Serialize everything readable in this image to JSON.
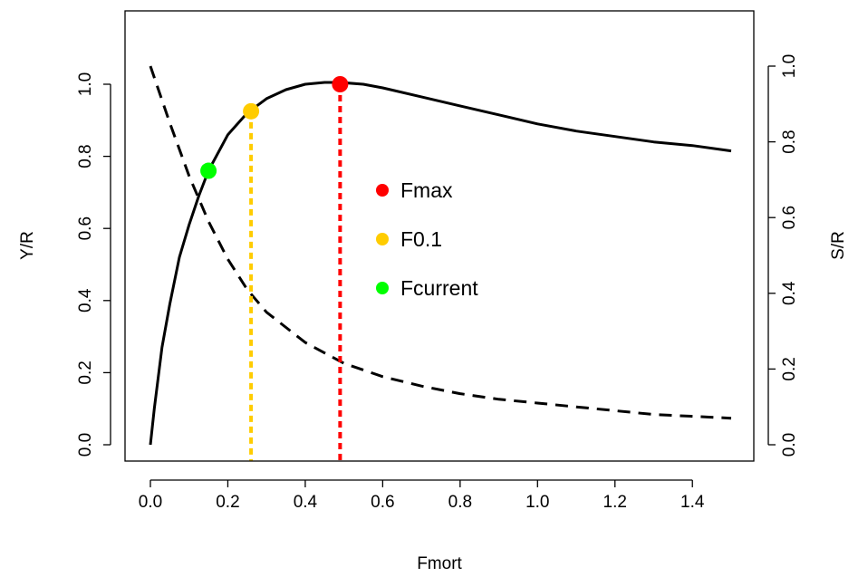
{
  "chart_data": {
    "type": "line",
    "title": "",
    "xlabel": "Fmort",
    "ylabel": "Y/R",
    "y2label": "S/R",
    "xlim": [
      0,
      1.5
    ],
    "ylim": [
      0,
      1.1
    ],
    "y2lim": [
      0,
      1.1
    ],
    "xticks": [
      "0.0",
      "0.2",
      "0.4",
      "0.6",
      "0.8",
      "1.0",
      "1.2",
      "1.4"
    ],
    "yticks": [
      "0.0",
      "0.2",
      "0.4",
      "0.6",
      "0.8",
      "1.0"
    ],
    "y2ticks": [
      "0.0",
      "0.2",
      "0.4",
      "0.6",
      "0.8",
      "1.0"
    ],
    "grid": false,
    "series": [
      {
        "axis": "left",
        "line_style": "solid",
        "color": "#000000",
        "x": [
          0,
          0.01,
          0.03,
          0.05,
          0.075,
          0.1,
          0.125,
          0.15,
          0.2,
          0.25,
          0.3,
          0.35,
          0.4,
          0.45,
          0.49,
          0.55,
          0.6,
          0.7,
          0.8,
          0.9,
          1.0,
          1.1,
          1.2,
          1.3,
          1.4,
          1.5
        ],
        "values": [
          0,
          0.1,
          0.27,
          0.39,
          0.52,
          0.61,
          0.69,
          0.76,
          0.86,
          0.92,
          0.96,
          0.985,
          1.0,
          1.005,
          1.005,
          1.0,
          0.99,
          0.965,
          0.94,
          0.915,
          0.89,
          0.87,
          0.855,
          0.84,
          0.83,
          0.815
        ]
      },
      {
        "axis": "right",
        "line_style": "dashed",
        "color": "#000000",
        "x": [
          0,
          0.05,
          0.1,
          0.15,
          0.2,
          0.25,
          0.3,
          0.4,
          0.5,
          0.6,
          0.7,
          0.8,
          0.9,
          1.0,
          1.1,
          1.2,
          1.3,
          1.4,
          1.5
        ],
        "values": [
          1.0,
          0.85,
          0.71,
          0.59,
          0.49,
          0.41,
          0.35,
          0.27,
          0.215,
          0.18,
          0.155,
          0.135,
          0.12,
          0.11,
          0.1,
          0.09,
          0.08,
          0.075,
          0.07
        ]
      }
    ],
    "reference_points": [
      {
        "name": "Fmax",
        "x": 0.49,
        "y": 1.0,
        "color": "#ff0000",
        "vline": true
      },
      {
        "name": "F0.1",
        "x": 0.26,
        "y": 0.925,
        "color": "#ffcc00",
        "vline": true
      },
      {
        "name": "Fcurrent",
        "x": 0.15,
        "y": 0.76,
        "color": "#00ff00",
        "vline": false
      }
    ],
    "legend": {
      "placement": "center",
      "items": [
        {
          "label": "Fmax",
          "color": "#ff0000"
        },
        {
          "label": "F0.1",
          "color": "#ffcc00"
        },
        {
          "label": "Fcurrent",
          "color": "#00ff00"
        }
      ]
    }
  }
}
